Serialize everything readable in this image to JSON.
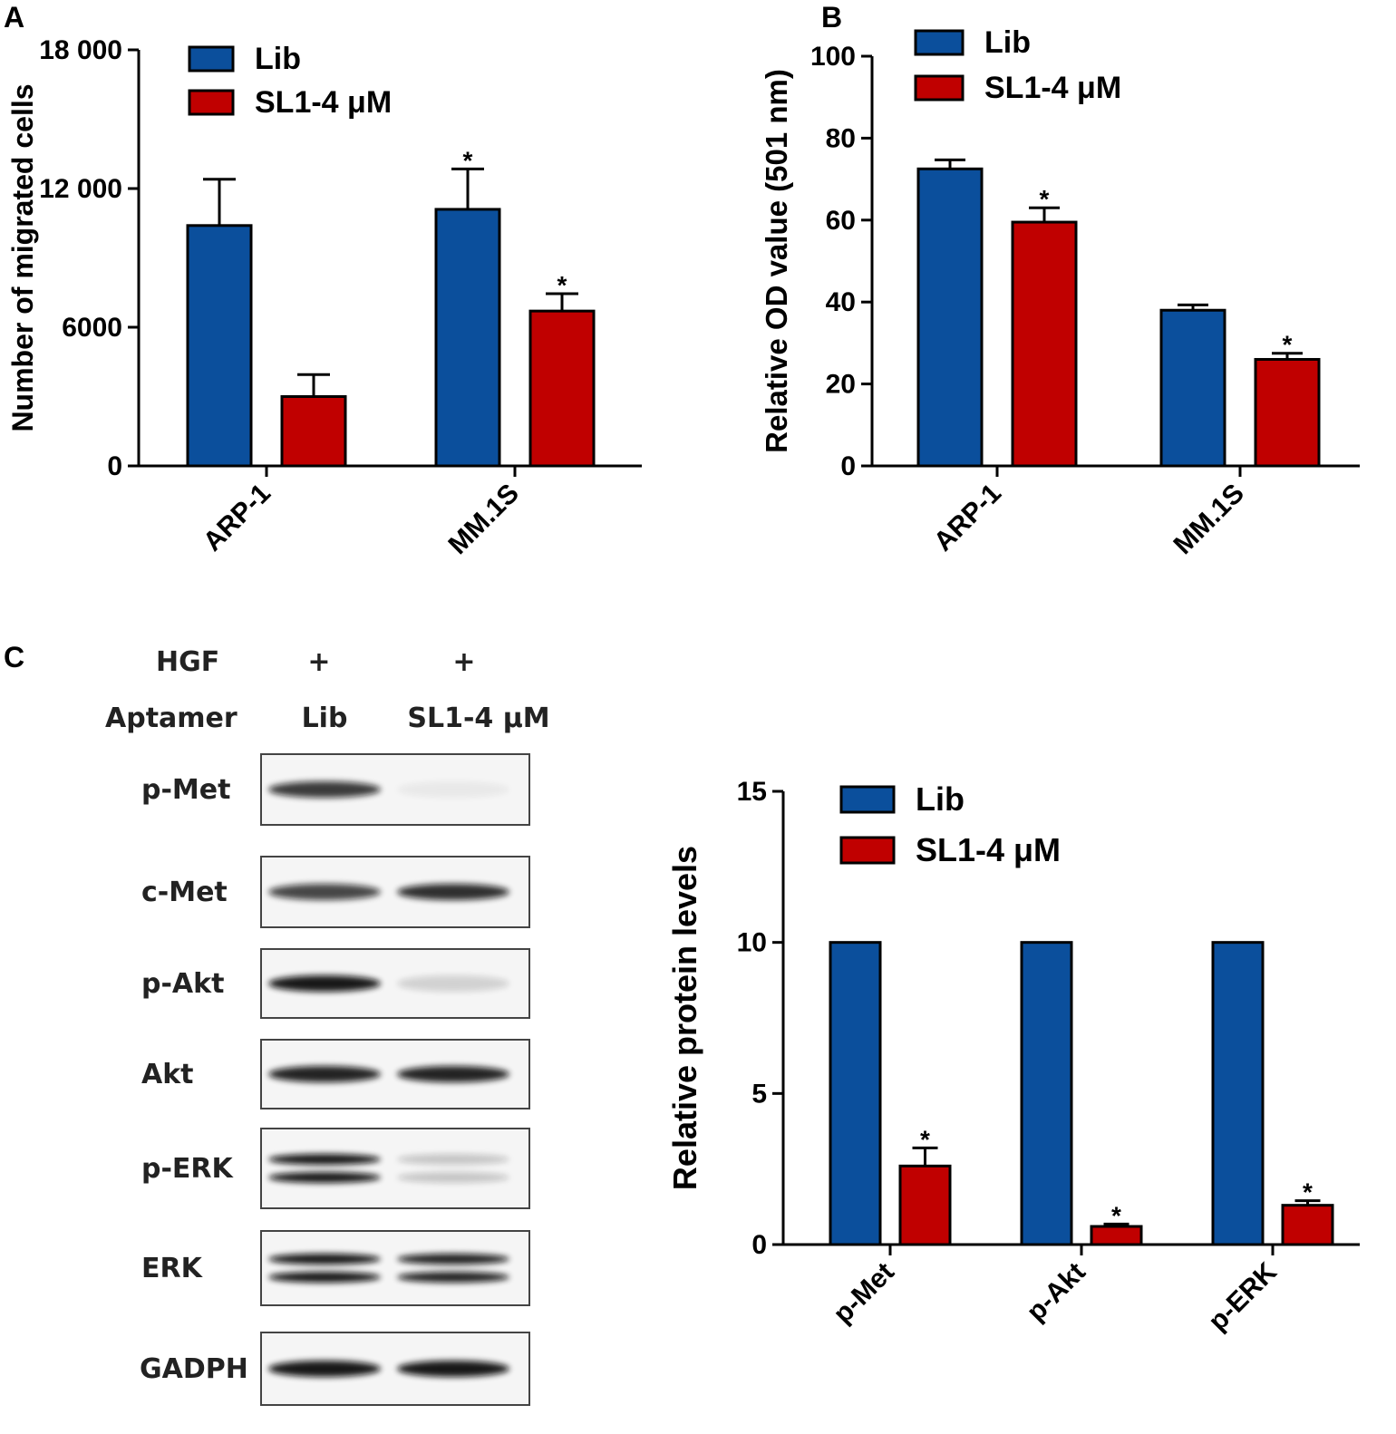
{
  "panels": {
    "a": "A",
    "b": "B",
    "c": "C"
  },
  "colors": {
    "lib": "#0b4f9c",
    "sl1": "#c00000",
    "axis": "#000000"
  },
  "chart_data": [
    {
      "panel": "A",
      "type": "bar",
      "categories": [
        "ARP-1",
        "MM.1S"
      ],
      "ylabel": "Number of migrated cells",
      "ylim": [
        0,
        18000
      ],
      "yticks": [
        "0",
        "6000",
        "12 000",
        "18 000"
      ],
      "ytick_values": [
        0,
        6000,
        12000,
        18000
      ],
      "series": [
        {
          "name": "Lib",
          "values": [
            10400,
            11100
          ],
          "errors": [
            2000,
            1750
          ]
        },
        {
          "name": "SL1-4 μM",
          "values": [
            3000,
            6700
          ],
          "errors": [
            950,
            750
          ]
        }
      ],
      "significance": [
        [
          false,
          true
        ],
        [
          false,
          true
        ]
      ],
      "star": "*",
      "legend": "top-left"
    },
    {
      "panel": "B",
      "type": "bar",
      "categories": [
        "ARP-1",
        "MM.1S"
      ],
      "ylabel": "Relative OD value (501 nm)",
      "ylim": [
        0,
        100
      ],
      "yticks": [
        "0",
        "20",
        "40",
        "60",
        "80",
        "100"
      ],
      "ytick_values": [
        0,
        20,
        40,
        60,
        80,
        100
      ],
      "series": [
        {
          "name": "Lib",
          "values": [
            72.5,
            38
          ],
          "errors": [
            2.2,
            1.3
          ]
        },
        {
          "name": "SL1-4 μM",
          "values": [
            59.5,
            26
          ],
          "errors": [
            3.5,
            1.5
          ]
        }
      ],
      "significance": [
        [
          false,
          false
        ],
        [
          true,
          true
        ]
      ],
      "star": "*",
      "legend": "top-left"
    },
    {
      "panel": "C",
      "type": "bar",
      "categories": [
        "p-Met",
        "p-Akt",
        "p-ERK"
      ],
      "ylabel": "Relative protein levels",
      "ylim": [
        0,
        15
      ],
      "yticks": [
        "0",
        "5",
        "10",
        "15"
      ],
      "ytick_values": [
        0,
        5,
        10,
        15
      ],
      "series": [
        {
          "name": "Lib",
          "values": [
            10,
            10,
            10
          ],
          "errors": [
            0,
            0,
            0
          ]
        },
        {
          "name": "SL1-4 μM",
          "values": [
            2.6,
            0.6,
            1.3
          ],
          "errors": [
            0.6,
            0.08,
            0.15
          ]
        }
      ],
      "significance": [
        [
          false,
          false,
          false
        ],
        [
          true,
          true,
          true
        ]
      ],
      "star": "*",
      "legend": "top-left"
    }
  ],
  "western_blot": {
    "hgf_label": "HGF",
    "hgf_values": [
      "+",
      "+"
    ],
    "aptamer_label": "Aptamer",
    "aptamer_values": [
      "Lib",
      "SL1-4 μM"
    ],
    "rows": [
      {
        "label": "p-Met",
        "lane_intensity": [
          0.8,
          0.05
        ],
        "bands": 1
      },
      {
        "label": "c-Met",
        "lane_intensity": [
          0.75,
          0.85
        ],
        "bands": 1
      },
      {
        "label": "p-Akt",
        "lane_intensity": [
          0.95,
          0.15
        ],
        "bands": 1
      },
      {
        "label": "Akt",
        "lane_intensity": [
          0.9,
          0.9
        ],
        "bands": 1
      },
      {
        "label": "p-ERK",
        "lane_intensity": [
          0.95,
          0.2
        ],
        "bands": 2
      },
      {
        "label": "ERK",
        "lane_intensity": [
          0.95,
          0.9
        ],
        "bands": 2
      },
      {
        "label": "GADPH",
        "lane_intensity": [
          0.95,
          0.95
        ],
        "bands": 1
      }
    ]
  }
}
